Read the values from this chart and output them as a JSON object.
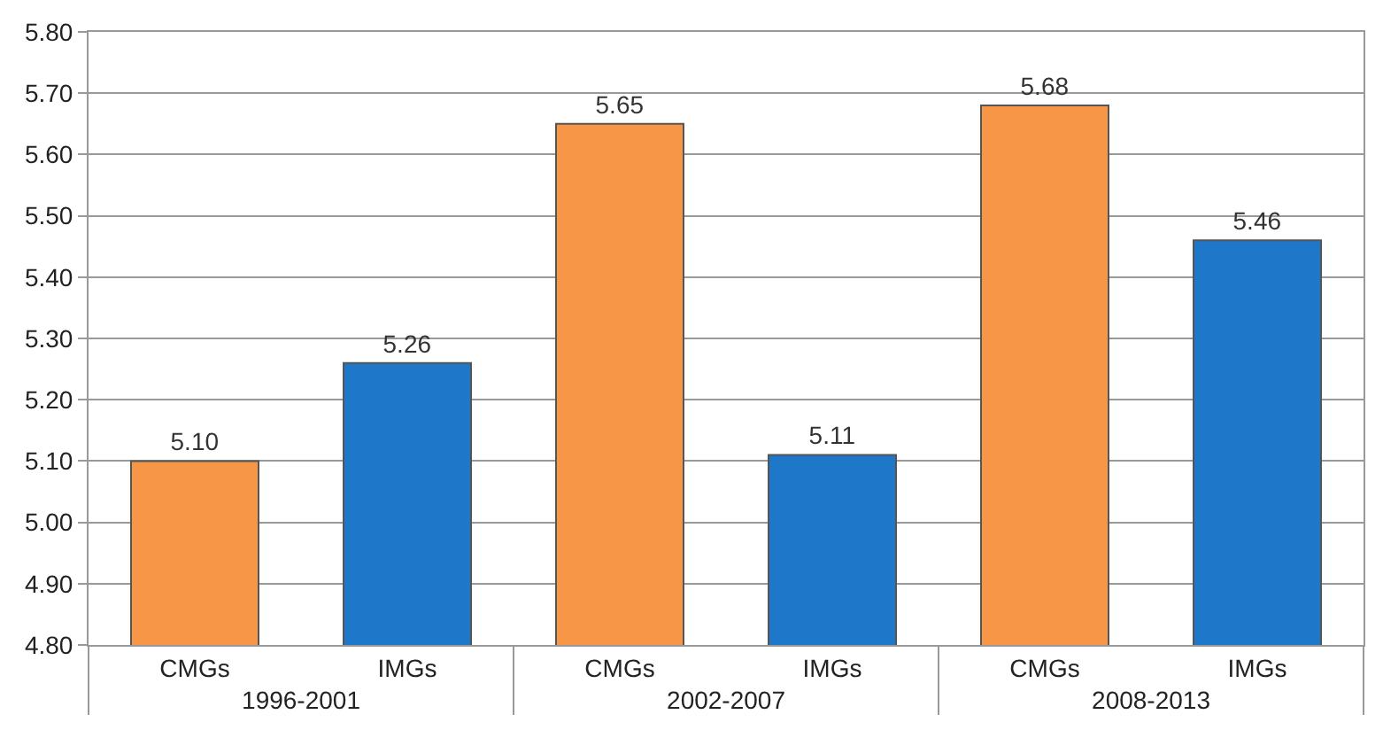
{
  "chart_data": {
    "type": "bar",
    "categories": [
      "CMGs",
      "IMGs",
      "CMGs",
      "IMGs",
      "CMGs",
      "IMGs"
    ],
    "values": [
      5.1,
      5.26,
      5.65,
      5.11,
      5.68,
      5.46
    ],
    "value_labels": [
      "5.10",
      "5.26",
      "5.65",
      "5.11",
      "5.68",
      "5.46"
    ],
    "colors": [
      "#f79646",
      "#1f77c9",
      "#f79646",
      "#1f77c9",
      "#f79646",
      "#1f77c9"
    ],
    "annotations": [
      "1996-2001",
      "2002-2007",
      "2008-2013"
    ],
    "ylim": [
      4.8,
      5.8
    ],
    "yticks": [
      {
        "value": 4.8,
        "label": "4.80"
      },
      {
        "value": 4.9,
        "label": "4.90"
      },
      {
        "value": 5.0,
        "label": "5.00"
      },
      {
        "value": 5.1,
        "label": "5.10"
      },
      {
        "value": 5.2,
        "label": "5.20"
      },
      {
        "value": 5.3,
        "label": "5.30"
      },
      {
        "value": 5.4,
        "label": "5.40"
      },
      {
        "value": 5.5,
        "label": "5.50"
      },
      {
        "value": 5.6,
        "label": "5.60"
      },
      {
        "value": 5.7,
        "label": "5.70"
      },
      {
        "value": 5.8,
        "label": "5.80"
      }
    ],
    "grid": "y",
    "legend": false
  }
}
